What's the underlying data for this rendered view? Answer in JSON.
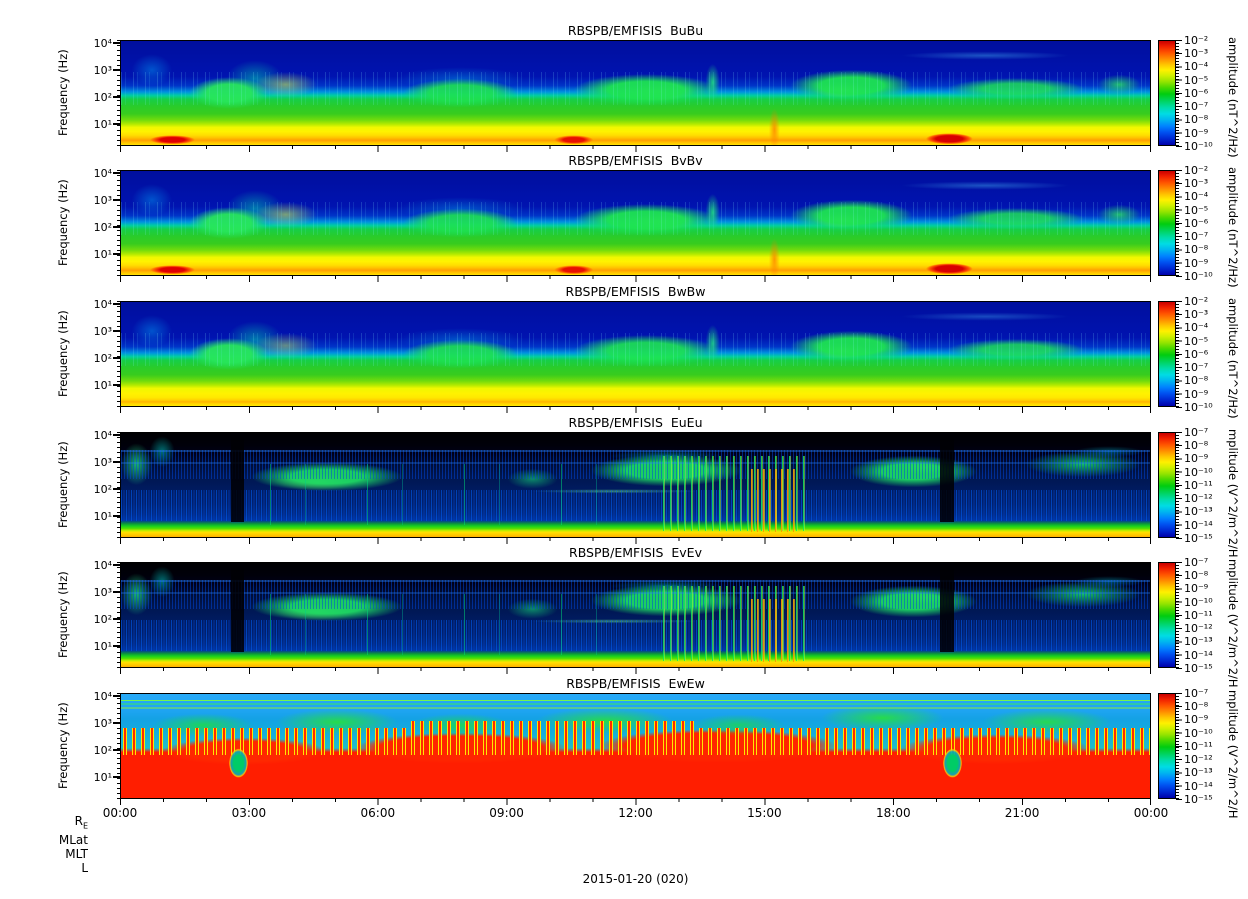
{
  "figure": {
    "background_color": "#ffffff",
    "date_label": "2015-01-20 (020)",
    "ephemeris": {
      "re_main": "R",
      "re_sub": "E",
      "mlat": "MLat",
      "mlt": "MLT",
      "l": "L"
    }
  },
  "chart_data": {
    "type": "heatmap",
    "subtype": "spectrogram-stack",
    "n_panels": 6,
    "x_tick_labels": [
      "00:00",
      "03:00",
      "06:00",
      "09:00",
      "12:00",
      "15:00",
      "18:00",
      "21:00",
      "00:00"
    ],
    "x_major_tick_interval_hours": 3,
    "x_minor_tick_interval_hours": 1,
    "x_range": "00:00 to 24:00 UT, 2015-01-20 (day 020)",
    "grid": false,
    "colormap": "rainbow (red = high, dark blue = low)",
    "panels": [
      {
        "title": "RBSPB/EMFISIS  BuBu",
        "ylabel": "Frequency (Hz)",
        "y_scale": "log",
        "y_tick_labels": [
          "10⁴",
          "10³",
          "10²",
          "10¹"
        ],
        "y_range_hz": [
          2,
          12000
        ],
        "colorbar_label": "amplitude (nT^2/Hz)",
        "colorbar_tick_labels": [
          "10⁻²",
          "10⁻³",
          "10⁻⁴",
          "10⁻⁵",
          "10⁻⁶",
          "10⁻⁷",
          "10⁻⁸",
          "10⁻⁹",
          "10⁻¹⁰"
        ],
        "colorbar_range": [
          1e-10,
          0.01
        ],
        "features": "Yellow/orange broadband band below ~30 Hz all day; red bursts near 01:15, 10:30 and 19:15; green wave patches 100-2000 Hz near 02-04, 08-10, 11-14, 16-18:30 and 19:30-24:00; dark blue (quiet) above ~1 kHz; faint cyan diagonal striation 17:00-22:00 near 2 kHz."
      },
      {
        "title": "RBSPB/EMFISIS  BvBv",
        "ylabel": "Frequency (Hz)",
        "y_scale": "log",
        "y_tick_labels": [
          "10⁴",
          "10³",
          "10²",
          "10¹"
        ],
        "y_range_hz": [
          2,
          12000
        ],
        "colorbar_label": "amplitude (nT^2/Hz)",
        "colorbar_tick_labels": [
          "10⁻²",
          "10⁻³",
          "10⁻⁴",
          "10⁻⁵",
          "10⁻⁶",
          "10⁻⁷",
          "10⁻⁸",
          "10⁻⁹",
          "10⁻¹⁰"
        ],
        "colorbar_range": [
          1e-10,
          0.01
        ],
        "features": "Same morphology as BuBu: intense low-frequency band with red enhancements near 01:15, 10:30 and 19:15; green 100-2000 Hz emissions in the same intervals."
      },
      {
        "title": "RBSPB/EMFISIS  BwBw",
        "ylabel": "Frequency (Hz)",
        "y_scale": "log",
        "y_tick_labels": [
          "10⁴",
          "10³",
          "10²",
          "10¹"
        ],
        "y_range_hz": [
          2,
          12000
        ],
        "colorbar_label": "amplitude (nT^2/Hz)",
        "colorbar_tick_labels": [
          "10⁻²",
          "10⁻³",
          "10⁻⁴",
          "10⁻⁵",
          "10⁻⁶",
          "10⁻⁷",
          "10⁻⁸",
          "10⁻⁹",
          "10⁻¹⁰"
        ],
        "colorbar_range": [
          1e-10,
          0.01
        ],
        "features": "Like BuBu/BvBv but weaker low-frequency floor (yellow, little red); same green 100-2000 Hz patches near 02-04, 08-10, 11-14, 16-18:30, 19:30-24:00."
      },
      {
        "title": "RBSPB/EMFISIS  EuEu",
        "ylabel": "Frequency (Hz)",
        "y_scale": "log",
        "y_tick_labels": [
          "10⁴",
          "10³",
          "10²",
          "10¹"
        ],
        "y_range_hz": [
          2,
          12000
        ],
        "colorbar_label": "mplitude (V^2/m^2/H",
        "colorbar_tick_labels": [
          "10⁻⁷",
          "10⁻⁸",
          "10⁻⁹",
          "10⁻¹⁰",
          "10⁻¹¹",
          "10⁻¹²",
          "10⁻¹³",
          "10⁻¹⁴",
          "10⁻¹⁵"
        ],
        "colorbar_range": [
          1e-15,
          1e-07
        ],
        "features": "Black background above ~2 kHz with thin blue interference lines; blue broadband noise 10-1000 Hz; green wave patches near 02-04, 09-10, 11:30-14, 16:30-18:30, 20-24; strong broadband bursts 13:00-16:30 peaking orange ~15:30; black vertical data gaps near 01:15 and 19:20; bright green band ~5-8 Hz and yellow strip at lowest frequencies."
      },
      {
        "title": "RBSPB/EMFISIS  EvEv",
        "ylabel": "Frequency (Hz)",
        "y_scale": "log",
        "y_tick_labels": [
          "10⁴",
          "10³",
          "10²",
          "10¹"
        ],
        "y_range_hz": [
          2,
          12000
        ],
        "colorbar_label": "mplitude (V^2/m^2/H",
        "colorbar_tick_labels": [
          "10⁻⁷",
          "10⁻⁸",
          "10⁻⁹",
          "10⁻¹⁰",
          "10⁻¹¹",
          "10⁻¹²",
          "10⁻¹³",
          "10⁻¹⁴",
          "10⁻¹⁵"
        ],
        "colorbar_range": [
          1e-15,
          1e-07
        ],
        "features": "Nearly identical to EuEu: same wave patches, broadband burst interval 13:00-16:30, data gaps near 01:15 and 19:20, green/yellow low-frequency bands."
      },
      {
        "title": "RBSPB/EMFISIS  EwEw",
        "ylabel": "Frequency (Hz)",
        "y_scale": "log",
        "y_tick_labels": [
          "10⁴",
          "10³",
          "10²",
          "10¹"
        ],
        "y_range_hz": [
          2,
          12000
        ],
        "colorbar_label": "mplitude (V^2/m^2/H",
        "colorbar_tick_labels": [
          "10⁻⁷",
          "10⁻⁸",
          "10⁻⁹",
          "10⁻¹⁰",
          "10⁻¹¹",
          "10⁻¹²",
          "10⁻¹³",
          "10⁻¹⁴",
          "10⁻¹⁵"
        ],
        "colorbar_range": [
          1e-15,
          1e-07
        ],
        "features": "Saturated red below ~100 Hz all day with a comb of narrow vertical spikes reaching ~1 kHz; cyan band above ~2 kHz crossed by thin green interference lines; green patches 200-1000 Hz; red envelope dips near 01:15 and 19:15."
      }
    ]
  }
}
